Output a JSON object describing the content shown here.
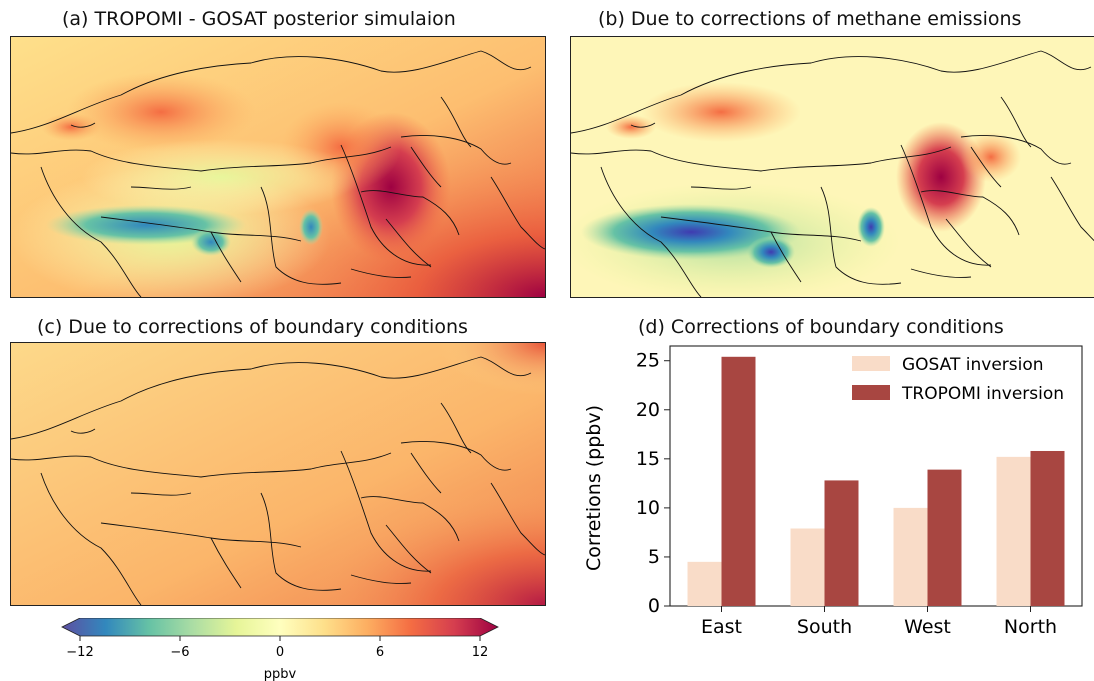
{
  "panels": {
    "a": {
      "title": "(a) TROPOMI - GOSAT posterior simulaion"
    },
    "b": {
      "title": "(b) Due to corrections of methane emissions"
    },
    "c": {
      "title": "(c) Due to corrections of boundary conditions"
    },
    "d": {
      "title": "(d) Corrections of boundary conditions"
    }
  },
  "colorbar": {
    "ticks": [
      "−12",
      "−6",
      "0",
      "6",
      "12"
    ],
    "label": "ppbv",
    "range": [
      -12,
      12
    ],
    "colormap": "Spectral_r"
  },
  "chart_data": {
    "type": "bar",
    "title": "(d) Corrections of boundary conditions",
    "categories": [
      "East",
      "South",
      "West",
      "North"
    ],
    "series": [
      {
        "name": "GOSAT inversion",
        "values": [
          4.5,
          7.9,
          10.0,
          15.2
        ],
        "color": "#f9dcc8"
      },
      {
        "name": "TROPOMI inversion",
        "values": [
          25.4,
          12.8,
          13.9,
          15.8
        ],
        "color": "#a84641"
      }
    ],
    "ylabel": "Corretions (ppbv)",
    "ylim": [
      0,
      26.5
    ],
    "yticks": [
      0,
      5,
      10,
      15,
      20,
      25
    ],
    "legend": "top-right",
    "grid": false
  }
}
